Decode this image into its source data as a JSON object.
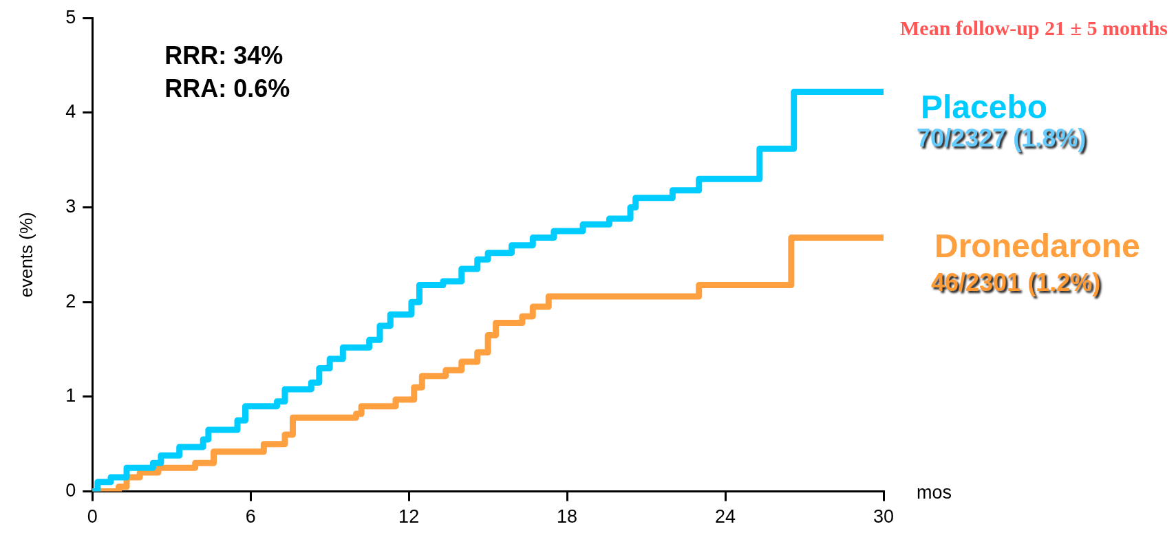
{
  "chart_data": {
    "type": "step",
    "xlabel": "mos",
    "ylabel": "events (%)",
    "xlim": [
      0,
      30
    ],
    "xticks": [
      0,
      6,
      12,
      18,
      24,
      30
    ],
    "ylim": [
      0,
      5
    ],
    "yticks": [
      0,
      1,
      2,
      3,
      4,
      5
    ],
    "grid": false,
    "legend": false,
    "marker": "none",
    "line_style": "solid",
    "series": [
      {
        "name": "Placebo",
        "color": "#00ccff",
        "x": [
          0,
          0.2,
          0.7,
          1.3,
          2.3,
          2.6,
          3.3,
          4.2,
          4.4,
          5.5,
          5.8,
          7,
          7.3,
          8.3,
          8.6,
          9,
          9.5,
          10.5,
          10.9,
          11.3,
          12.1,
          12.4,
          13.3,
          14,
          14.6,
          15,
          15.9,
          16.7,
          17.5,
          18.6,
          19.6,
          20.4,
          20.6,
          22,
          23,
          25.3,
          26.6,
          30
        ],
        "values": [
          0,
          0.1,
          0.15,
          0.25,
          0.3,
          0.38,
          0.47,
          0.55,
          0.65,
          0.75,
          0.9,
          0.95,
          1.08,
          1.15,
          1.3,
          1.4,
          1.52,
          1.6,
          1.75,
          1.87,
          2.0,
          2.18,
          2.22,
          2.35,
          2.45,
          2.52,
          2.6,
          2.68,
          2.75,
          2.82,
          2.88,
          3.0,
          3.1,
          3.18,
          3.3,
          3.62,
          4.22,
          4.22
        ]
      },
      {
        "name": "Dronedarone",
        "color": "#ffa040",
        "x": [
          0,
          1,
          1.3,
          1.8,
          2.5,
          3.9,
          4.6,
          6.5,
          7.3,
          7.6,
          10,
          10.2,
          11.5,
          12.2,
          12.5,
          13.4,
          14,
          14.6,
          15,
          15.3,
          16.3,
          16.7,
          17.3,
          23,
          26.5,
          30
        ],
        "values": [
          0,
          0.05,
          0.15,
          0.2,
          0.25,
          0.3,
          0.42,
          0.5,
          0.6,
          0.78,
          0.82,
          0.9,
          0.97,
          1.1,
          1.22,
          1.28,
          1.37,
          1.47,
          1.65,
          1.78,
          1.85,
          1.95,
          2.06,
          2.18,
          2.68,
          2.68
        ]
      }
    ],
    "annotations": [
      "Mean follow-up 21 ± 5 months",
      "RRR: 34%",
      "RRA: 0.6%",
      "70/2327 (1.8%)",
      "46/2301 (1.2%)"
    ]
  }
}
